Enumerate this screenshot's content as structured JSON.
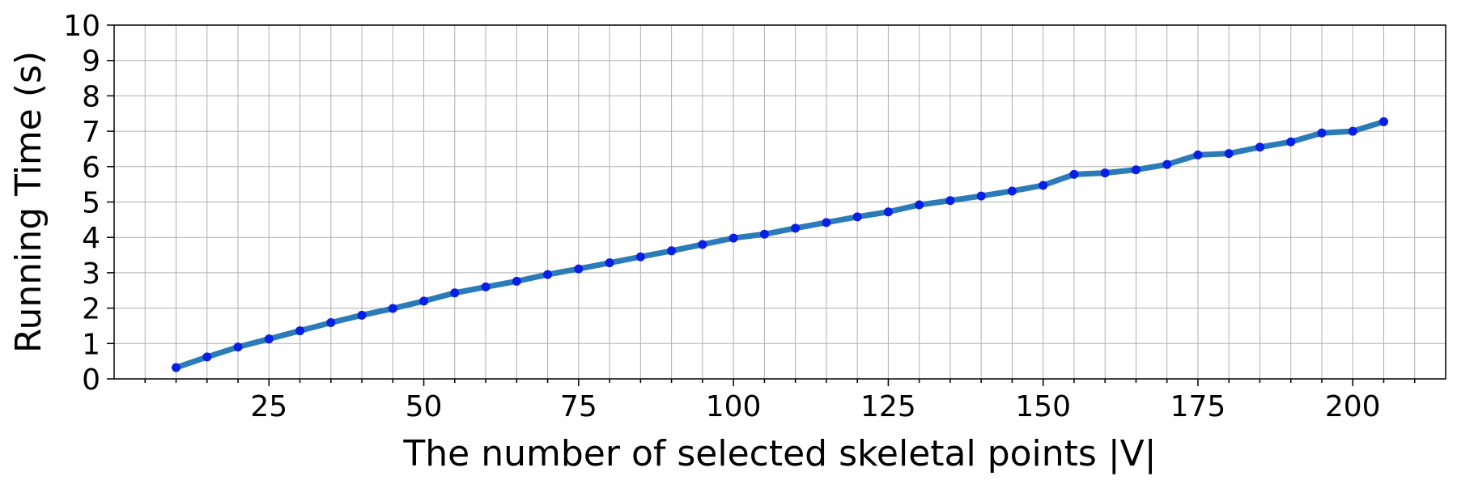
{
  "chart_data": {
    "type": "line",
    "title": "",
    "xlabel": "The number of selected skeletal points |V|",
    "ylabel": "Running Time (s)",
    "xlim": [
      0,
      215
    ],
    "ylim": [
      0,
      10
    ],
    "x_major_ticks": [
      25,
      50,
      75,
      100,
      125,
      150,
      175,
      200
    ],
    "x_minor_ticks": [
      5,
      10,
      15,
      20,
      30,
      35,
      40,
      45,
      55,
      60,
      65,
      70,
      80,
      85,
      90,
      95,
      105,
      110,
      115,
      120,
      130,
      135,
      140,
      145,
      155,
      160,
      165,
      170,
      180,
      185,
      190,
      195,
      205,
      210
    ],
    "y_ticks": [
      0,
      1,
      2,
      3,
      4,
      5,
      6,
      7,
      8,
      9,
      10
    ],
    "grid": true,
    "line_color": "#2b7bb9",
    "marker_color": "#0a1fe6",
    "series": [
      {
        "x": [
          10,
          15,
          20,
          25,
          30,
          35,
          40,
          45,
          50,
          55,
          60,
          65,
          70,
          75,
          80,
          85,
          90,
          95,
          100,
          105,
          110,
          115,
          120,
          125,
          130,
          135,
          140,
          145,
          150,
          155,
          160,
          165,
          170,
          175,
          180,
          185,
          190,
          195,
          200,
          205
        ],
        "y": [
          0.32,
          0.62,
          0.9,
          1.13,
          1.36,
          1.59,
          1.8,
          1.99,
          2.2,
          2.43,
          2.6,
          2.76,
          2.95,
          3.11,
          3.28,
          3.45,
          3.62,
          3.8,
          3.98,
          4.09,
          4.26,
          4.42,
          4.58,
          4.72,
          4.92,
          5.04,
          5.17,
          5.31,
          5.47,
          5.78,
          5.82,
          5.91,
          6.06,
          6.33,
          6.37,
          6.55,
          6.7,
          6.95,
          7.0,
          7.27
        ]
      }
    ]
  }
}
